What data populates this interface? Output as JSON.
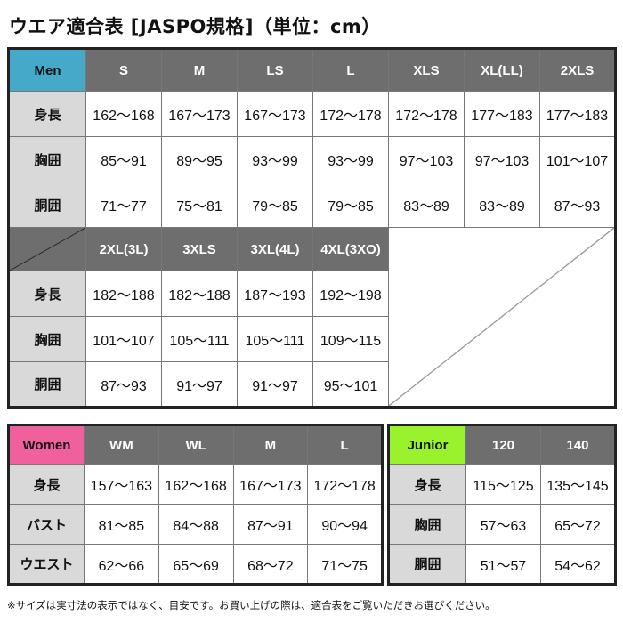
{
  "title": "ウエア適合表 [JASPO規格]（単位：cm）",
  "colors": {
    "men": "#45aac9",
    "women": "#f0609c",
    "junior": "#99f22c",
    "header": "#6e6e6e",
    "label": "#d9d9d9"
  },
  "men": {
    "label": "Men",
    "sizes1": [
      "S",
      "M",
      "LS",
      "L",
      "XLS",
      "XL(LL)",
      "2XLS"
    ],
    "rows1": [
      {
        "label": "身長",
        "values": [
          "162〜168",
          "167〜173",
          "167〜173",
          "172〜178",
          "172〜178",
          "177〜183",
          "177〜183"
        ]
      },
      {
        "label": "胸囲",
        "values": [
          "85〜91",
          "89〜95",
          "93〜99",
          "93〜99",
          "97〜103",
          "97〜103",
          "101〜107"
        ]
      },
      {
        "label": "胴囲",
        "values": [
          "71〜77",
          "75〜81",
          "79〜85",
          "79〜85",
          "83〜89",
          "83〜89",
          "87〜93"
        ]
      }
    ],
    "sizes2": [
      "2XL(3L)",
      "3XLS",
      "3XL(4L)",
      "4XL(3XO)"
    ],
    "rows2": [
      {
        "label": "身長",
        "values": [
          "182〜188",
          "182〜188",
          "187〜193",
          "192〜198"
        ]
      },
      {
        "label": "胸囲",
        "values": [
          "101〜107",
          "105〜111",
          "105〜111",
          "109〜115"
        ]
      },
      {
        "label": "胴囲",
        "values": [
          "87〜93",
          "91〜97",
          "91〜97",
          "95〜101"
        ]
      }
    ]
  },
  "women": {
    "label": "Women",
    "sizes": [
      "WM",
      "WL",
      "M",
      "L"
    ],
    "rows": [
      {
        "label": "身長",
        "values": [
          "157〜163",
          "162〜168",
          "167〜173",
          "172〜178"
        ]
      },
      {
        "label": "バスト",
        "values": [
          "81〜85",
          "84〜88",
          "87〜91",
          "90〜94"
        ]
      },
      {
        "label": "ウエスト",
        "values": [
          "62〜66",
          "65〜69",
          "68〜72",
          "71〜75"
        ]
      }
    ]
  },
  "junior": {
    "label": "Junior",
    "sizes": [
      "120",
      "140"
    ],
    "rows": [
      {
        "label": "身長",
        "values": [
          "115〜125",
          "135〜145"
        ]
      },
      {
        "label": "胸囲",
        "values": [
          "57〜63",
          "65〜72"
        ]
      },
      {
        "label": "胴囲",
        "values": [
          "51〜57",
          "54〜62"
        ]
      }
    ]
  },
  "footnote": "※サイズは実寸法の表示ではなく、目安です。お買い上げの際は、適合表をご覧いただきお選びください。"
}
